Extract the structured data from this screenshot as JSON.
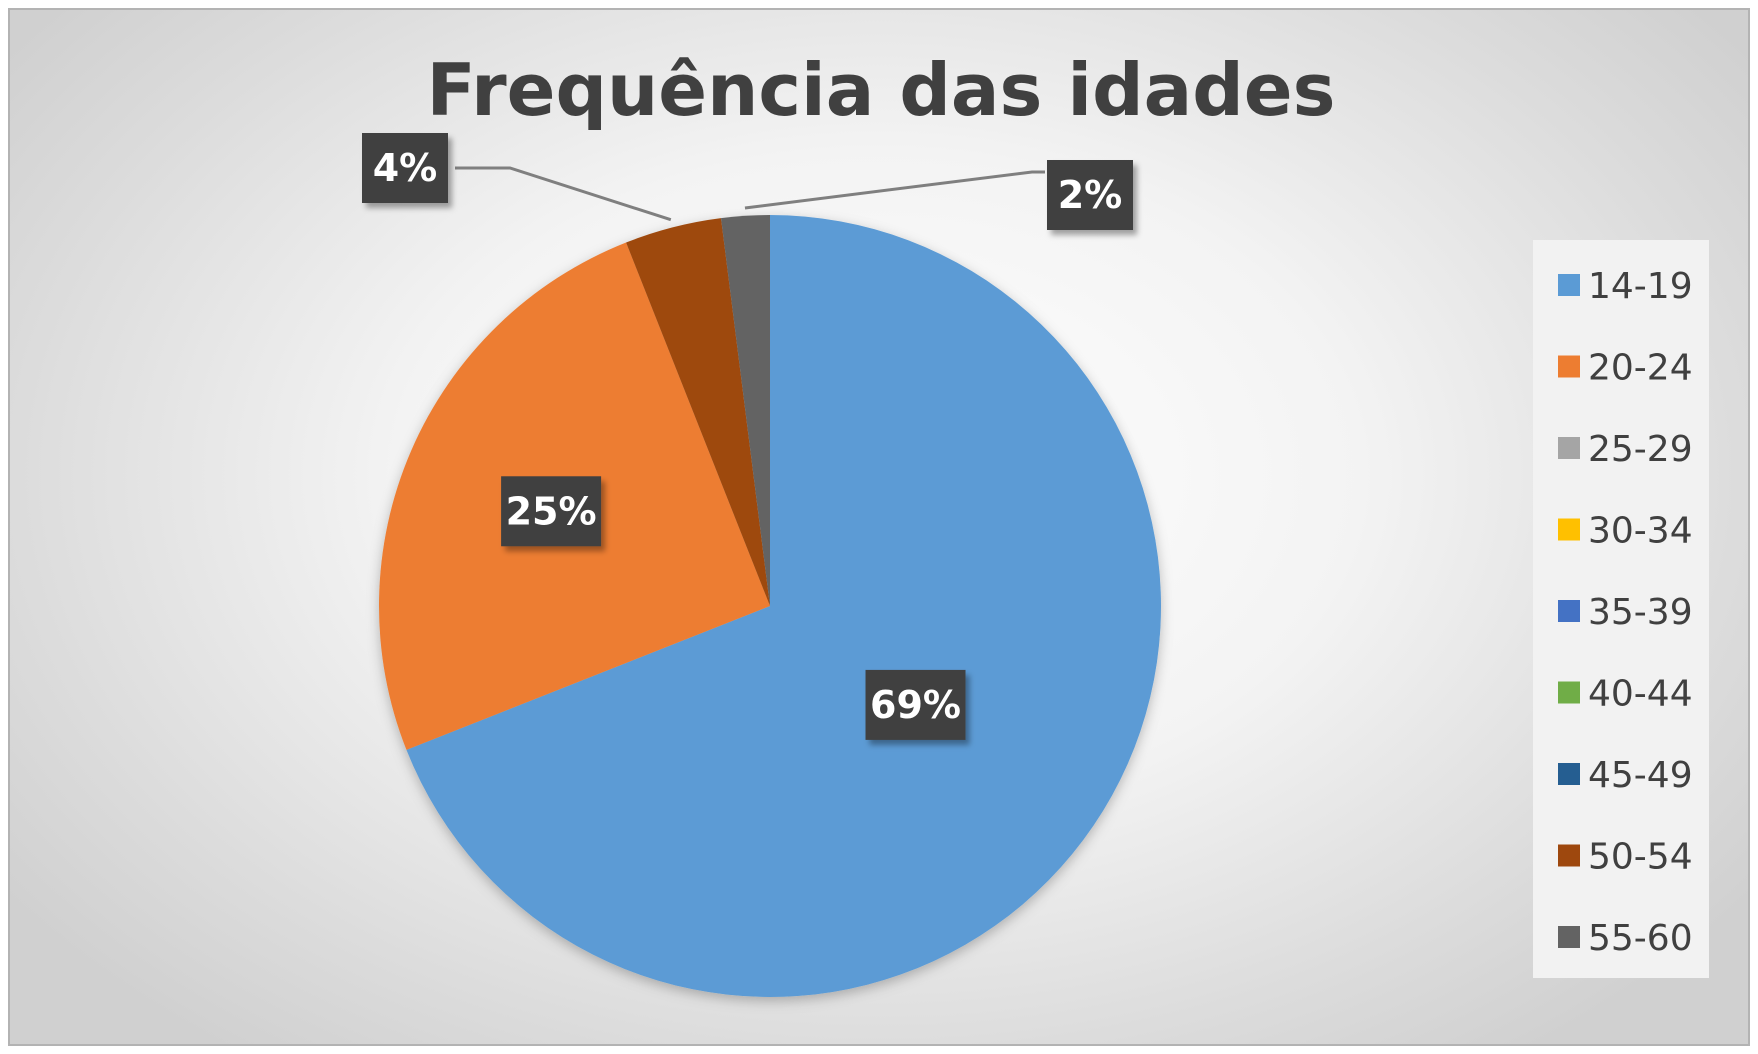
{
  "chart_data": {
    "type": "pie",
    "title": "Frequência das idades",
    "categories": [
      "14-19",
      "20-24",
      "25-29",
      "30-34",
      "35-39",
      "40-44",
      "45-49",
      "50-54",
      "55-60"
    ],
    "values": [
      69,
      25,
      0,
      0,
      0,
      0,
      0,
      4,
      2
    ],
    "data_labels": [
      "69%",
      "25%",
      "",
      "",
      "",
      "",
      "",
      "4%",
      "2%"
    ],
    "colors": [
      "#5b9bd5",
      "#ed7d31",
      "#a5a5a5",
      "#ffc000",
      "#4472c4",
      "#70ad47",
      "#255e91",
      "#9e480e",
      "#636363"
    ],
    "legend_position": "right"
  }
}
